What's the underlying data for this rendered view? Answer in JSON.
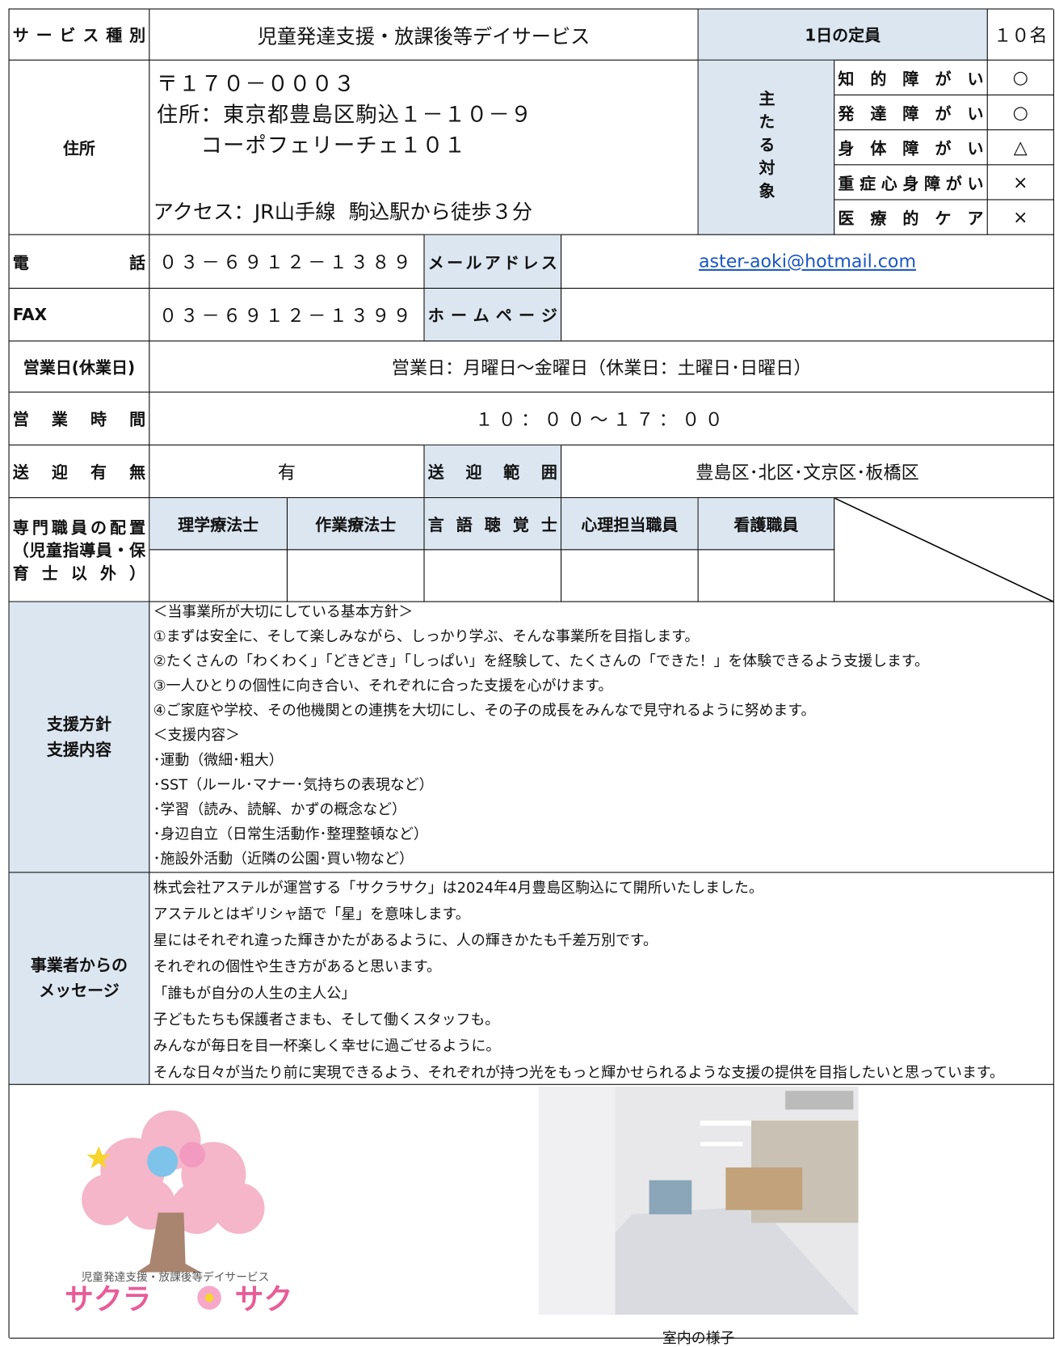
{
  "service_type": {
    "label": "サービス種別",
    "value": "児童発達支援・放課後等デイサービス"
  },
  "capacity": {
    "label": "1日の定員",
    "value": "１０名"
  },
  "address": {
    "label": "住所",
    "lines": [
      "〒１７０－０００３",
      "住所：東京都豊島区駒込１－１０－９",
      "　　コーポフェリーチェ１０１"
    ],
    "access": "アクセス：JR山手線  駒込駅から徒歩３分"
  },
  "targets": {
    "label": "主たる対象",
    "items": [
      {
        "label": "知的障がい",
        "mark": "○"
      },
      {
        "label": "発達障がい",
        "mark": "○"
      },
      {
        "label": "身体障がい",
        "mark": "△"
      },
      {
        "label": "重症心身障がい",
        "mark": "×"
      },
      {
        "label": "医療的ケア",
        "mark": "×"
      }
    ]
  },
  "phone": {
    "label": "電話",
    "value": "０３－６９１２－１３８９"
  },
  "email": {
    "label": "メールアドレス",
    "value": "aster-aoki@hotmail.com"
  },
  "fax": {
    "label": "FAX",
    "value": "０３－６９１２－１３９９"
  },
  "homepage": {
    "label": "ホームページ"
  },
  "business_days": {
    "label": "営業日(休業日)",
    "value": "営業日：月曜日～金曜日（休業日：土曜日･日曜日）"
  },
  "hours": {
    "label": "営業時間",
    "value": "１０：００～１７：００"
  },
  "transport": {
    "label": "送迎有無",
    "value": "有"
  },
  "transport_area": {
    "label": "送迎範囲",
    "value": "豊島区･北区･文京区･板橋区"
  },
  "specialists": {
    "label": "専門職員の配置（児童指導員・保育士以外）",
    "roles": [
      "理学療法士",
      "作業療法士",
      "言語聴覚士",
      "心理担当職員",
      "看護職員"
    ]
  },
  "policy": {
    "label": [
      "支援方針",
      "支援内容"
    ],
    "lines": [
      "＜当事業所が大切にしている基本方針＞",
      "①まずは安全に、そして楽しみながら、しっかり学ぶ、そんな事業所を目指します。",
      "②たくさんの「わくわく」「どきどき」「しっぱい」を経験して、たくさんの「できた！」を体験できるよう支援します。",
      "③一人ひとりの個性に向き合い、それぞれに合った支援を心がけます。",
      "④ご家庭や学校、その他機関との連携を大切にし、その子の成長をみんなで見守れるように努めます。",
      "＜支援内容＞",
      "･運動（微細･粗大）",
      "･SST（ルール･マナー･気持ちの表現など）",
      "･学習（読み、読解、かずの概念など）",
      "･身辺自立（日常生活動作･整理整頓など）",
      "･施設外活動（近隣の公園･買い物など）"
    ]
  },
  "message": {
    "label": [
      "事業者からの",
      "メッセージ"
    ],
    "lines": [
      "株式会社アステルが運営する「サクラサク」は2024年4月豊島区駒込にて開所いたしました。",
      "アステルとはギリシャ語で「星」を意味します。",
      "星にはそれぞれ違った輝きかたがあるように、人の輝きかたも千差万別です。",
      "それぞれの個性や生き方があると思います。",
      "「誰もが自分の人生の主人公」",
      "子どもたちも保護者さまも、そして働くスタッフも。",
      "みんなが毎日を目一杯楽しく幸せに過ごせるように。",
      "そんな日々が当たり前に実現できるよう、それぞれが持つ光をもっと輝かせられるような支援の提供を目指したいと思っています。"
    ]
  },
  "logo": {
    "subtitle": "児童発達支援・放課後等デイサービス",
    "name_left": "サクラ",
    "name_right": "サク"
  },
  "photo": {
    "caption": "室内の様子"
  }
}
